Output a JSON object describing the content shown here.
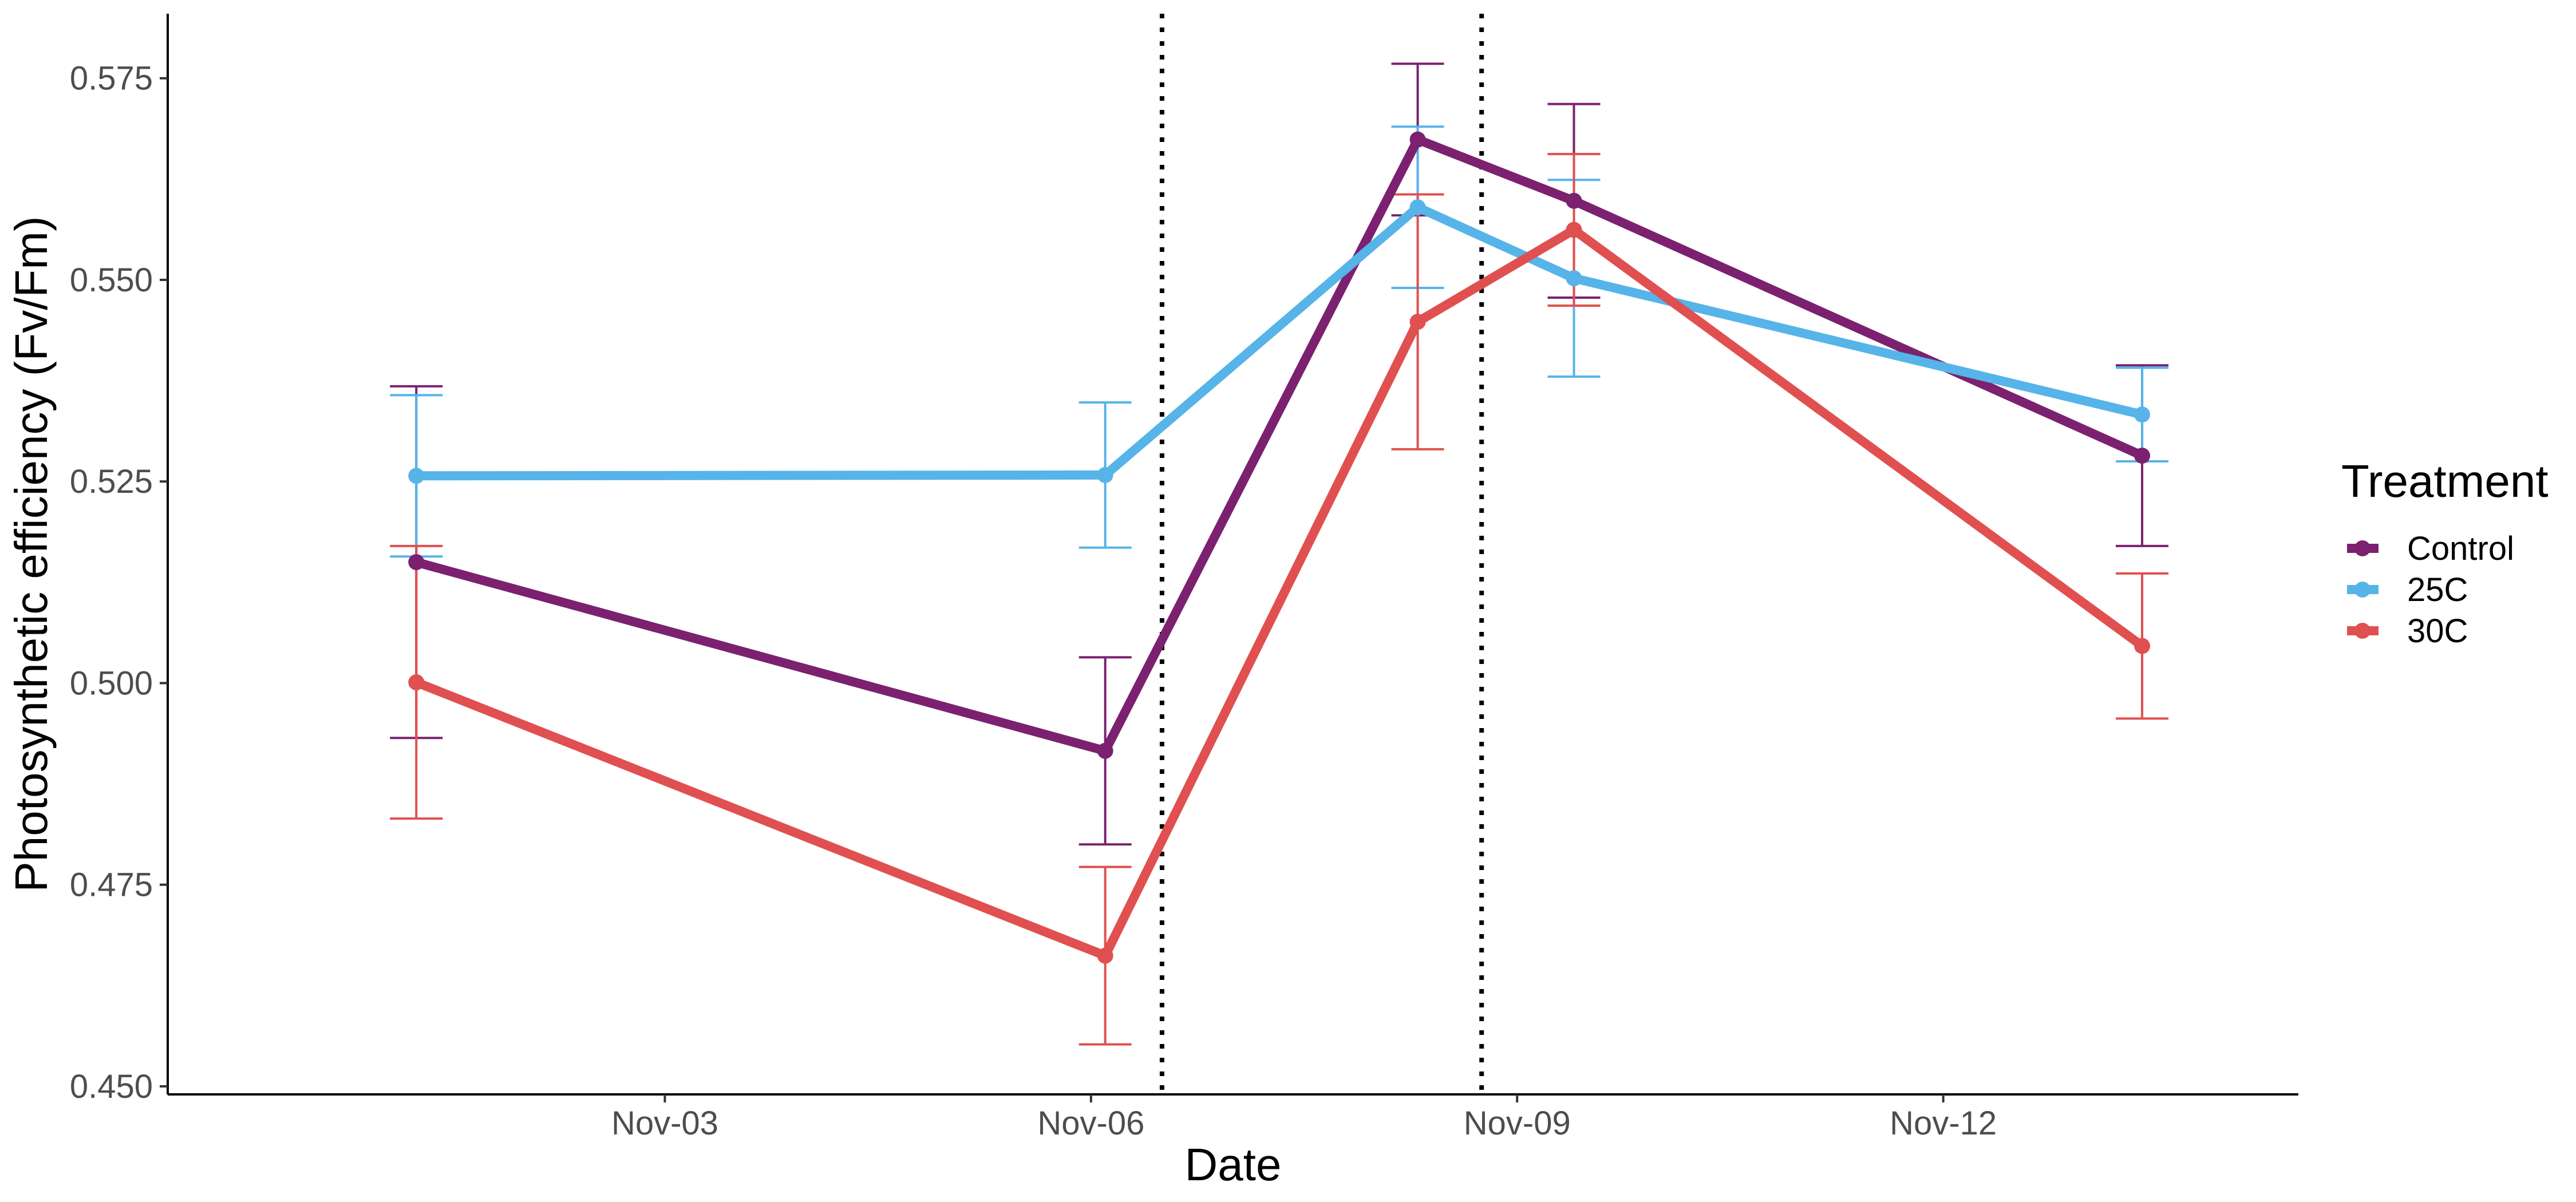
{
  "chart_data": {
    "type": "line",
    "title": "",
    "xlabel": "Date",
    "ylabel": "Photosynthetic efficiency (Fv/Fm)",
    "x_ticks": [
      {
        "date": "2023-11-03",
        "label": "Nov-03"
      },
      {
        "date": "2023-11-06",
        "label": "Nov-06"
      },
      {
        "date": "2023-11-09",
        "label": "Nov-09"
      },
      {
        "date": "2023-11-12",
        "label": "Nov-12"
      }
    ],
    "y_ticks": [
      "0.450",
      "0.475",
      "0.500",
      "0.525",
      "0.550",
      "0.575"
    ],
    "xlim": [
      "2023-10-30T12:00",
      "2023-11-14T12:00"
    ],
    "ylim": [
      0.449,
      0.583
    ],
    "grid": false,
    "legend": {
      "title": "Treatment",
      "position": "right"
    },
    "vlines": [
      {
        "date": "2023-11-06T12:00",
        "style": "dotted",
        "color": "#000000"
      },
      {
        "date": "2023-11-08T18:00",
        "style": "dotted",
        "color": "#000000"
      }
    ],
    "series": [
      {
        "name": "Control",
        "color": "#7b216f",
        "points": [
          {
            "x": "2023-11-01T06:00",
            "y": 0.515,
            "ymin": 0.4932,
            "ymax": 0.5368
          },
          {
            "x": "2023-11-06T02:24",
            "y": 0.4916,
            "ymin": 0.48,
            "ymax": 0.5032
          },
          {
            "x": "2023-11-08T07:12",
            "y": 0.5674,
            "ymin": 0.558,
            "ymax": 0.5768
          },
          {
            "x": "2023-11-09T09:36",
            "y": 0.5598,
            "ymin": 0.5478,
            "ymax": 0.5718
          },
          {
            "x": "2023-11-13T09:36",
            "y": 0.5282,
            "ymin": 0.517,
            "ymax": 0.5394
          }
        ]
      },
      {
        "name": "25C",
        "color": "#56b4e9",
        "points": [
          {
            "x": "2023-11-01T06:00",
            "y": 0.5257,
            "ymin": 0.5157,
            "ymax": 0.5357
          },
          {
            "x": "2023-11-06T02:24",
            "y": 0.5258,
            "ymin": 0.5168,
            "ymax": 0.5348
          },
          {
            "x": "2023-11-08T07:12",
            "y": 0.559,
            "ymin": 0.549,
            "ymax": 0.569
          },
          {
            "x": "2023-11-09T09:36",
            "y": 0.5502,
            "ymin": 0.538,
            "ymax": 0.5624
          },
          {
            "x": "2023-11-13T09:36",
            "y": 0.5333,
            "ymin": 0.5275,
            "ymax": 0.5391
          }
        ]
      },
      {
        "name": "30C",
        "color": "#e05050",
        "points": [
          {
            "x": "2023-11-01T06:00",
            "y": 0.5001,
            "ymin": 0.4832,
            "ymax": 0.517
          },
          {
            "x": "2023-11-06T02:24",
            "y": 0.4662,
            "ymin": 0.4552,
            "ymax": 0.4772
          },
          {
            "x": "2023-11-08T07:12",
            "y": 0.5448,
            "ymin": 0.529,
            "ymax": 0.5606
          },
          {
            "x": "2023-11-09T09:36",
            "y": 0.5562,
            "ymin": 0.5468,
            "ymax": 0.5656
          },
          {
            "x": "2023-11-13T09:36",
            "y": 0.5046,
            "ymin": 0.4956,
            "ymax": 0.5136
          }
        ]
      }
    ]
  }
}
